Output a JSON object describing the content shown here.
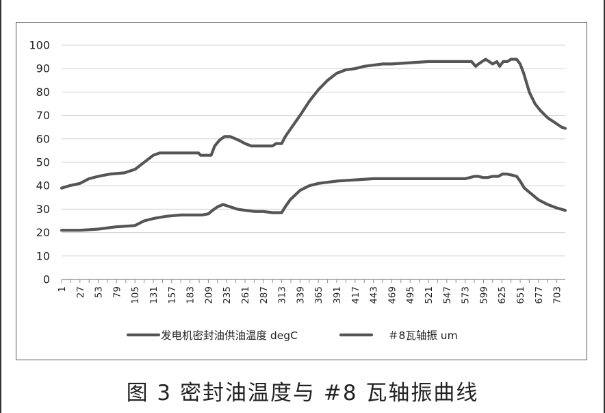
{
  "caption": "图 3   密封油温度与 #8 瓦轴振曲线",
  "chart_data": {
    "type": "line",
    "title": "",
    "xlabel": "",
    "ylabel": "",
    "ylim": [
      0,
      100
    ],
    "y_ticks": [
      "0",
      "10",
      "20",
      "30",
      "40",
      "50",
      "60",
      "70",
      "80",
      "90",
      "100"
    ],
    "x_ticks": [
      "1",
      "27",
      "53",
      "79",
      "105",
      "131",
      "157",
      "183",
      "209",
      "235",
      "261",
      "287",
      "313",
      "339",
      "365",
      "391",
      "417",
      "443",
      "469",
      "495",
      "521",
      "547",
      "573",
      "599",
      "625",
      "651",
      "677",
      "703"
    ],
    "xlim": [
      1,
      715
    ],
    "grid": "horizontal",
    "legend_position": "bottom",
    "line_color": "#555555",
    "series": [
      {
        "name": "发电机密封油供油温度 degC",
        "points": [
          [
            1,
            39
          ],
          [
            12,
            40
          ],
          [
            27,
            41
          ],
          [
            40,
            43
          ],
          [
            53,
            44
          ],
          [
            70,
            45
          ],
          [
            90,
            45.5
          ],
          [
            105,
            47
          ],
          [
            118,
            50
          ],
          [
            131,
            53
          ],
          [
            140,
            54
          ],
          [
            157,
            54
          ],
          [
            183,
            54
          ],
          [
            195,
            54
          ],
          [
            198,
            53
          ],
          [
            208,
            53
          ],
          [
            213,
            53
          ],
          [
            218,
            57
          ],
          [
            225,
            59.5
          ],
          [
            232,
            61
          ],
          [
            240,
            61
          ],
          [
            248,
            60
          ],
          [
            255,
            59
          ],
          [
            261,
            58
          ],
          [
            270,
            57
          ],
          [
            287,
            57
          ],
          [
            300,
            57
          ],
          [
            305,
            58
          ],
          [
            313,
            58
          ],
          [
            318,
            61
          ],
          [
            325,
            64
          ],
          [
            339,
            70
          ],
          [
            352,
            76
          ],
          [
            365,
            81
          ],
          [
            378,
            85
          ],
          [
            391,
            88
          ],
          [
            404,
            89.5
          ],
          [
            417,
            90
          ],
          [
            430,
            91
          ],
          [
            443,
            91.5
          ],
          [
            456,
            92
          ],
          [
            469,
            92
          ],
          [
            495,
            92.5
          ],
          [
            521,
            93
          ],
          [
            547,
            93
          ],
          [
            573,
            93
          ],
          [
            582,
            93
          ],
          [
            588,
            91
          ],
          [
            592,
            92
          ],
          [
            597,
            93
          ],
          [
            602,
            94
          ],
          [
            607,
            93
          ],
          [
            612,
            92
          ],
          [
            618,
            93
          ],
          [
            622,
            91
          ],
          [
            627,
            93
          ],
          [
            633,
            93
          ],
          [
            638,
            94
          ],
          [
            646,
            94
          ],
          [
            651,
            92
          ],
          [
            656,
            88
          ],
          [
            664,
            80
          ],
          [
            672,
            75
          ],
          [
            680,
            72
          ],
          [
            690,
            69
          ],
          [
            700,
            67
          ],
          [
            710,
            65
          ],
          [
            715,
            64.5
          ]
        ]
      },
      {
        "name": "＃8瓦轴振 um",
        "points": [
          [
            1,
            21
          ],
          [
            27,
            21
          ],
          [
            53,
            21.5
          ],
          [
            79,
            22.5
          ],
          [
            105,
            23
          ],
          [
            118,
            25
          ],
          [
            131,
            26
          ],
          [
            150,
            27
          ],
          [
            170,
            27.5
          ],
          [
            183,
            27.5
          ],
          [
            200,
            27.5
          ],
          [
            209,
            28
          ],
          [
            215,
            29.5
          ],
          [
            222,
            31
          ],
          [
            230,
            32
          ],
          [
            240,
            31
          ],
          [
            250,
            30
          ],
          [
            261,
            29.5
          ],
          [
            275,
            29
          ],
          [
            287,
            29
          ],
          [
            300,
            28.5
          ],
          [
            313,
            28.5
          ],
          [
            318,
            31
          ],
          [
            325,
            34
          ],
          [
            339,
            38
          ],
          [
            352,
            40
          ],
          [
            365,
            41
          ],
          [
            378,
            41.5
          ],
          [
            391,
            42
          ],
          [
            417,
            42.5
          ],
          [
            443,
            43
          ],
          [
            469,
            43
          ],
          [
            495,
            43
          ],
          [
            521,
            43
          ],
          [
            547,
            43
          ],
          [
            573,
            43
          ],
          [
            580,
            43.5
          ],
          [
            586,
            44
          ],
          [
            592,
            44
          ],
          [
            598,
            43.5
          ],
          [
            605,
            43.5
          ],
          [
            612,
            44
          ],
          [
            620,
            44
          ],
          [
            626,
            45
          ],
          [
            632,
            45
          ],
          [
            640,
            44.5
          ],
          [
            646,
            44
          ],
          [
            651,
            42
          ],
          [
            657,
            39
          ],
          [
            665,
            37
          ],
          [
            677,
            34
          ],
          [
            690,
            32
          ],
          [
            703,
            30.5
          ],
          [
            715,
            29.5
          ]
        ]
      }
    ]
  }
}
